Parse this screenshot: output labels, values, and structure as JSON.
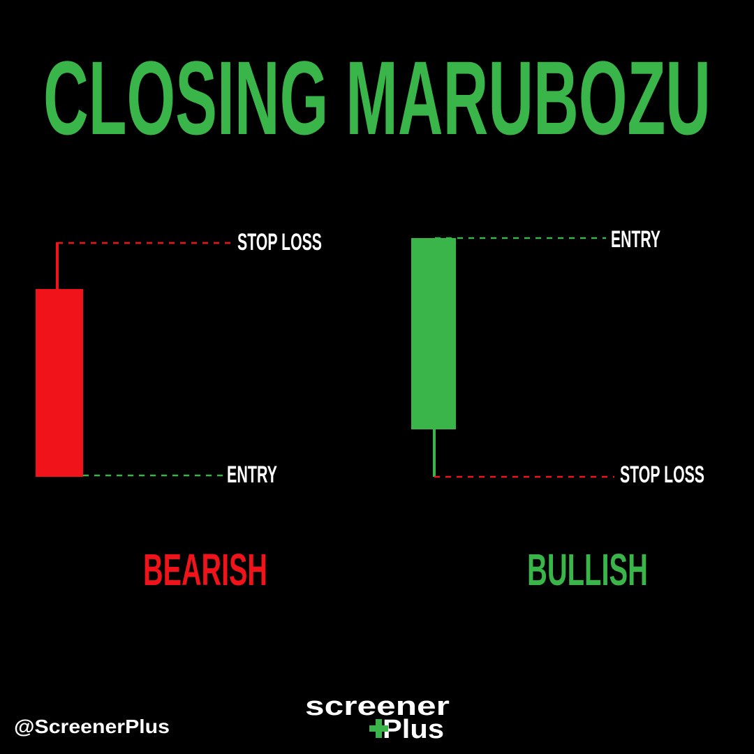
{
  "title": "CLOSING MARUBOZU",
  "panels": [
    {
      "top_label": "STOP LOSS",
      "bottom_label": "ENTRY",
      "name": "BEARISH"
    },
    {
      "top_label": "ENTRY",
      "bottom_label": "STOP LOSS",
      "name": "BULLISH"
    }
  ],
  "footer": {
    "handle": "@ScreenerPlus",
    "logo_line1": "screener",
    "logo_line2": "Plus"
  }
}
